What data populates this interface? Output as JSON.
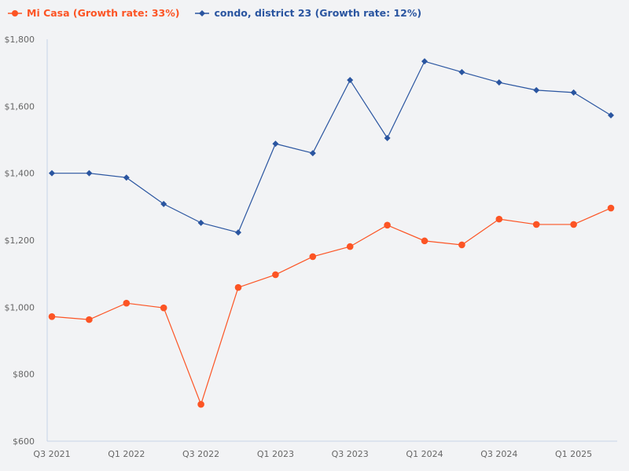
{
  "chart_data": {
    "type": "line",
    "title": "",
    "xlabel": "",
    "ylabel": "",
    "ylim": [
      600,
      1800
    ],
    "yticks": [
      "$600",
      "$800",
      "$1,000",
      "$1,200",
      "$1,400",
      "$1,600",
      "$1,800"
    ],
    "ytick_values": [
      600,
      800,
      1000,
      1200,
      1400,
      1600,
      1800
    ],
    "categories": [
      "Q3 2021",
      "Q4 2021",
      "Q1 2022",
      "Q2 2022",
      "Q3 2022",
      "Q4 2022",
      "Q1 2023",
      "Q2 2023",
      "Q3 2023",
      "Q4 2023",
      "Q1 2024",
      "Q2 2024",
      "Q3 2024",
      "Q4 2024",
      "Q1 2025",
      "Q2 2025"
    ],
    "xtick_labels": [
      "Q3 2021",
      "Q1 2022",
      "Q3 2022",
      "Q1 2023",
      "Q3 2023",
      "Q1 2024",
      "Q3 2024",
      "Q1 2025"
    ],
    "grid": false,
    "legend_position": "top-left",
    "series": [
      {
        "name": "Mi Casa (Growth rate: 33%)",
        "color": "#fc5424",
        "marker": "circle",
        "values": [
          972,
          963,
          1012,
          998,
          710,
          1059,
          1097,
          1151,
          1181,
          1245,
          1198,
          1186,
          1263,
          1247,
          1247,
          1296
        ]
      },
      {
        "name": "condo, district 23 (Growth rate: 12%)",
        "color": "#2a55a0",
        "marker": "diamond",
        "values": [
          1400,
          1400,
          1387,
          1308,
          1252,
          1223,
          1488,
          1460,
          1678,
          1505,
          1734,
          1702,
          1671,
          1648,
          1641,
          1573
        ]
      }
    ]
  }
}
